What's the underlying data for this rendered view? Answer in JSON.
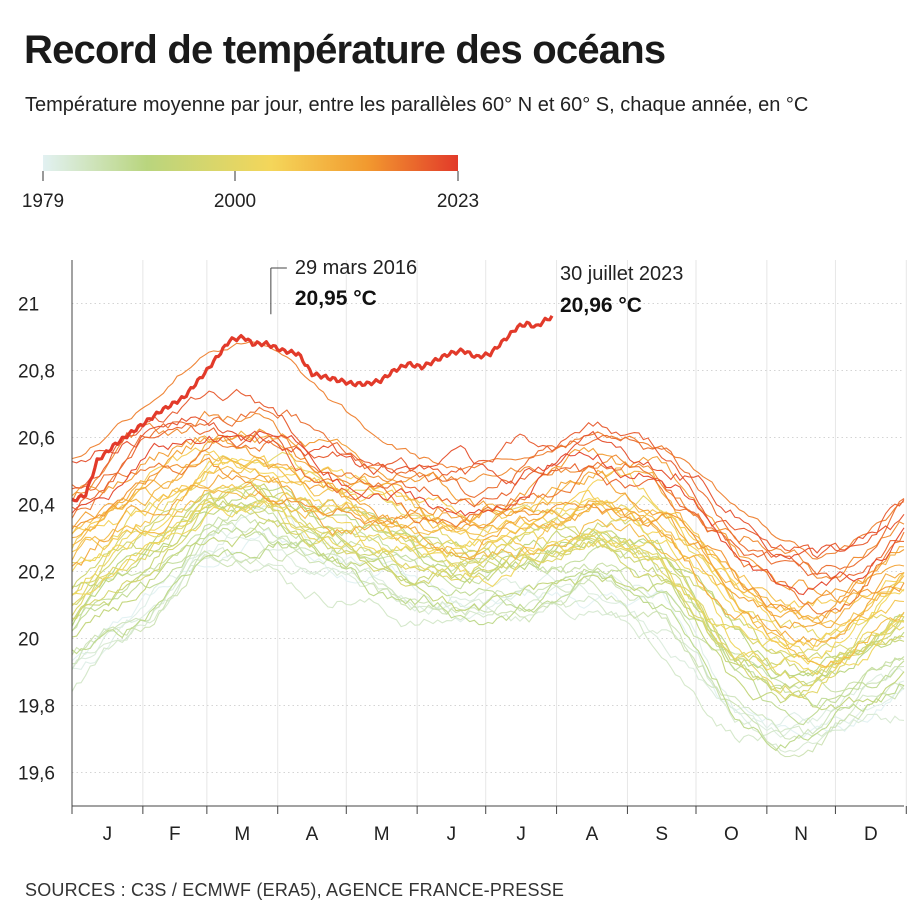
{
  "title": "Record de température des océans",
  "subtitle": "Température moyenne par jour, entre les parallèles 60° N et 60° S, chaque année, en °C",
  "legend": {
    "year_start": "1979",
    "year_mid": "2000",
    "year_end": "2023",
    "colors": [
      "#e2f1f2",
      "#b9d57e",
      "#f4d65a",
      "#f29a2f",
      "#e23a2a"
    ]
  },
  "source": "SOURCES : C3S / ECMWF (ERA5), AGENCE FRANCE-PRESSE",
  "chart_data": {
    "type": "line",
    "ylim": [
      19.5,
      21.1
    ],
    "yticks": [
      19.6,
      19.8,
      20,
      20.2,
      20.4,
      20.6,
      20.8,
      21
    ],
    "ytick_labels": [
      "19,6",
      "19,8",
      "20",
      "20,2",
      "20,4",
      "20,6",
      "20,8",
      "21"
    ],
    "months": [
      "J",
      "F",
      "M",
      "A",
      "M",
      "J",
      "J",
      "A",
      "S",
      "O",
      "N",
      "D"
    ],
    "first_year": 1979,
    "last_year": 2023,
    "anchor_doy": [
      1,
      30,
      60,
      85,
      100,
      110,
      135,
      150,
      175,
      195,
      211,
      230,
      260,
      275,
      290,
      310,
      325,
      340,
      355,
      365
    ],
    "anchor_1979": [
      19.88,
      20.05,
      20.25,
      20.28,
      20.24,
      20.2,
      20.15,
      20.12,
      20.08,
      20.1,
      20.12,
      20.12,
      20.05,
      19.9,
      19.75,
      19.7,
      19.72,
      19.76,
      19.8,
      19.84
    ],
    "anchor_2022": [
      20.48,
      20.58,
      20.65,
      20.62,
      20.58,
      20.55,
      20.5,
      20.48,
      20.45,
      20.48,
      20.52,
      20.58,
      20.52,
      20.45,
      20.35,
      20.25,
      20.2,
      20.22,
      20.3,
      20.35
    ],
    "highlight_2023": {
      "label": "2023",
      "doy": [
        1,
        7,
        12,
        20,
        30,
        40,
        50,
        60,
        70,
        76,
        80,
        86,
        93,
        100,
        106,
        112,
        118,
        124,
        130,
        136,
        142,
        148,
        154,
        160,
        166,
        172,
        178,
        184,
        190,
        196,
        200,
        204,
        208,
        211
      ],
      "values": [
        20.41,
        20.43,
        20.53,
        20.58,
        20.63,
        20.68,
        20.72,
        20.8,
        20.89,
        20.9,
        20.88,
        20.88,
        20.86,
        20.85,
        20.79,
        20.78,
        20.77,
        20.76,
        20.76,
        20.77,
        20.8,
        20.82,
        20.81,
        20.83,
        20.85,
        20.86,
        20.84,
        20.85,
        20.89,
        20.93,
        20.94,
        20.93,
        20.95,
        20.96
      ]
    },
    "annotations": [
      {
        "date": "29 mars 2016",
        "value": "20,95 °C",
        "doy": 88,
        "v": 20.95
      },
      {
        "date": "30 juillet 2023",
        "value": "20,96 °C",
        "doy": 211,
        "v": 20.96
      }
    ],
    "grid": true,
    "legend": "top-left"
  }
}
